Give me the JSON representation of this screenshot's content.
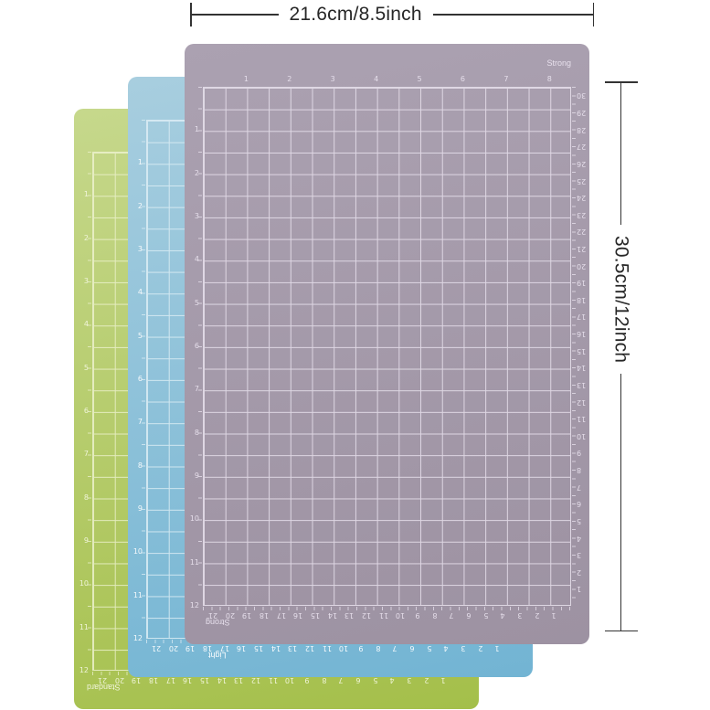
{
  "page": {
    "background": "#ffffff"
  },
  "dimensions": {
    "width_label": "21.6cm/8.5inch",
    "height_label": "30.5cm/12inch",
    "line_color": "#333333",
    "text_color": "#272727"
  },
  "scales": {
    "inch_top": [
      "1",
      "2",
      "3",
      "4",
      "5",
      "6",
      "7",
      "8"
    ],
    "inch_left": [
      "1",
      "2",
      "3",
      "4",
      "5",
      "6",
      "7",
      "8",
      "9",
      "10",
      "11",
      "12"
    ],
    "cm_right": [
      "30",
      "29",
      "28",
      "27",
      "26",
      "25",
      "24",
      "23",
      "22",
      "21",
      "20",
      "19",
      "18",
      "17",
      "16",
      "15",
      "14",
      "13",
      "12",
      "11",
      "10",
      "9",
      "8",
      "7",
      "6",
      "5",
      "4",
      "3",
      "2",
      "1"
    ],
    "cm_bottom": [
      "21",
      "20",
      "19",
      "18",
      "17",
      "16",
      "15",
      "14",
      "13",
      "12",
      "11",
      "10",
      "9",
      "8",
      "7",
      "6",
      "5",
      "4",
      "3",
      "2",
      "1"
    ]
  },
  "mats": [
    {
      "label": "Standard",
      "colors": {
        "surface_top": "#c6d88c",
        "surface_bottom": "#a4bf4a",
        "grid_line": "#edf2cd",
        "number": "#f5f8e2"
      }
    },
    {
      "label": "Light",
      "colors": {
        "surface_top": "#a8cedf",
        "surface_bottom": "#72b4d3",
        "grid_line": "#ddeef5",
        "number": "#ffffff"
      }
    },
    {
      "label": "Strong",
      "colors": {
        "surface_top": "#aba1b1",
        "surface_bottom": "#9d92a2",
        "grid_line": "#e9e2ee",
        "number": "#ebe4f0"
      }
    }
  ]
}
